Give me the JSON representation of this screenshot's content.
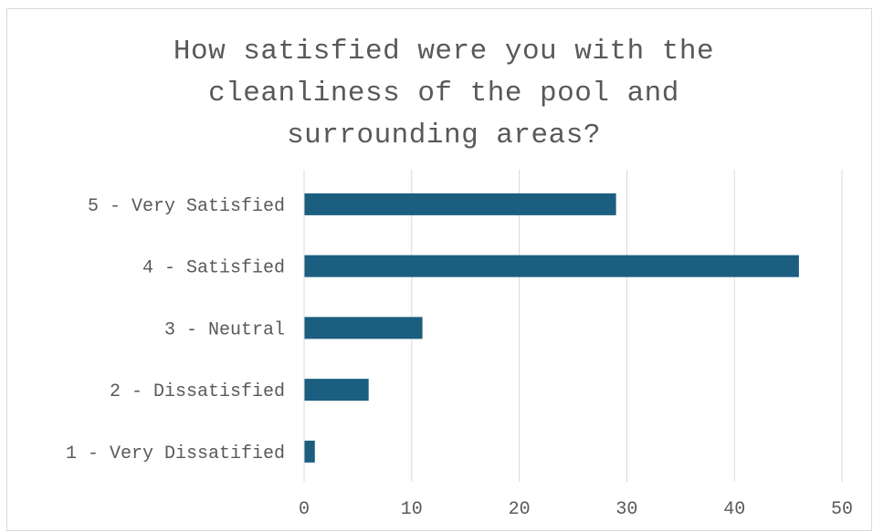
{
  "chart_data": {
    "type": "bar",
    "orientation": "horizontal",
    "title": "How satisfied were you with the cleanliness of the pool and surrounding areas?",
    "title_lines": [
      "How satisfied were you with the",
      "cleanliness of the pool and",
      "surrounding areas?"
    ],
    "categories": [
      "5 - Very Satisfied",
      "4 - Satisfied",
      "3 - Neutral",
      "2 - Dissatisfied",
      "1 - Very Dissatified"
    ],
    "values": [
      29,
      46,
      11,
      6,
      1
    ],
    "xlim": [
      0,
      50
    ],
    "xticks": [
      0,
      10,
      20,
      30,
      40,
      50
    ],
    "xlabel": "",
    "ylabel": "",
    "grid": "vertical gridlines",
    "legend": "none",
    "bar_color": "#1b5e80",
    "grid_color": "#d9d9d9"
  }
}
